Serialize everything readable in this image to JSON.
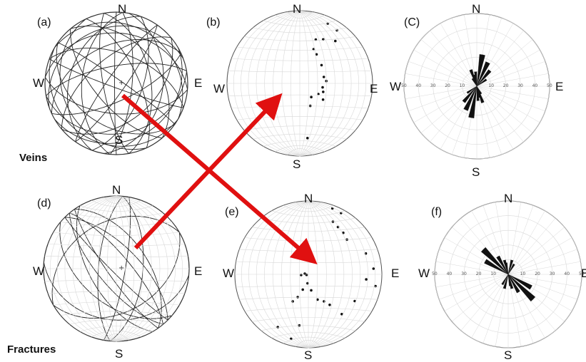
{
  "panels": [
    {
      "id": "a",
      "label": "(a)",
      "type": "great-circles",
      "N": "N",
      "S": "S",
      "E": "E",
      "W": "W"
    },
    {
      "id": "b",
      "label": "(b)",
      "type": "poles",
      "N": "N",
      "S": "S",
      "E": "E",
      "W": "W"
    },
    {
      "id": "c",
      "label": "(C)",
      "type": "rose",
      "N": "N",
      "S": "S",
      "E": "E",
      "W": "W",
      "ticks": [
        "50",
        "40",
        "30",
        "20",
        "10",
        "10",
        "20",
        "30",
        "40",
        "50"
      ]
    },
    {
      "id": "d",
      "label": "(d)",
      "type": "great-circles",
      "N": "N",
      "S": "S",
      "E": "E",
      "W": "W"
    },
    {
      "id": "e",
      "label": "(e)",
      "type": "poles",
      "N": "N",
      "S": "S",
      "E": "E",
      "W": "W"
    },
    {
      "id": "f",
      "label": "(f)",
      "type": "rose",
      "N": "N",
      "S": "S",
      "E": "E",
      "W": "W",
      "ticks": [
        "50",
        "40",
        "30",
        "20",
        "10",
        "10",
        "20",
        "30",
        "40",
        "50"
      ]
    }
  ],
  "row_labels": {
    "top": "Veins",
    "bottom": "Fractures"
  },
  "colors": {
    "arrow": "#e01010",
    "lines": "#222222",
    "grid": "#d8d8d8",
    "circle": "#555555"
  },
  "veins": {
    "great_circles": [
      {
        "strike": 10,
        "dip": 35
      },
      {
        "strike": 20,
        "dip": 60
      },
      {
        "strike": 35,
        "dip": 80
      },
      {
        "strike": 50,
        "dip": 45
      },
      {
        "strike": 65,
        "dip": 70
      },
      {
        "strike": 80,
        "dip": 30
      },
      {
        "strike": 95,
        "dip": 55
      },
      {
        "strike": 110,
        "dip": 85
      },
      {
        "strike": 125,
        "dip": 40
      },
      {
        "strike": 140,
        "dip": 65
      },
      {
        "strike": 155,
        "dip": 25
      },
      {
        "strike": 170,
        "dip": 75
      },
      {
        "strike": 185,
        "dip": 50
      },
      {
        "strike": 200,
        "dip": 35
      },
      {
        "strike": 215,
        "dip": 80
      },
      {
        "strike": 230,
        "dip": 60
      },
      {
        "strike": 245,
        "dip": 45
      },
      {
        "strike": 260,
        "dip": 70
      },
      {
        "strike": 275,
        "dip": 30
      },
      {
        "strike": 290,
        "dip": 55
      },
      {
        "strike": 305,
        "dip": 85
      },
      {
        "strike": 320,
        "dip": 40
      },
      {
        "strike": 335,
        "dip": 65
      },
      {
        "strike": 350,
        "dip": 50
      },
      {
        "strike": 5,
        "dip": 72
      },
      {
        "strike": 60,
        "dip": 20
      },
      {
        "strike": 120,
        "dip": 15
      },
      {
        "strike": 250,
        "dip": 22
      },
      {
        "strike": 300,
        "dip": 18
      },
      {
        "strike": 180,
        "dip": 88
      }
    ],
    "poles": [
      {
        "trend": 25,
        "plunge": 10
      },
      {
        "trend": 35,
        "plunge": 12
      },
      {
        "trend": 40,
        "plunge": 25
      },
      {
        "trend": 28,
        "plunge": 32
      },
      {
        "trend": 20,
        "plunge": 36
      },
      {
        "trend": 22,
        "plunge": 48
      },
      {
        "trend": 30,
        "plunge": 52
      },
      {
        "trend": 50,
        "plunge": 58
      },
      {
        "trend": 75,
        "plunge": 62
      },
      {
        "trend": 85,
        "plunge": 60
      },
      {
        "trend": 100,
        "plunge": 64
      },
      {
        "trend": 110,
        "plunge": 62
      },
      {
        "trend": 120,
        "plunge": 66
      },
      {
        "trend": 125,
        "plunge": 58
      },
      {
        "trend": 140,
        "plunge": 70
      },
      {
        "trend": 155,
        "plunge": 62
      },
      {
        "trend": 172,
        "plunge": 25
      }
    ],
    "rose": [
      {
        "azimuth": 10,
        "value": 22
      },
      {
        "azimuth": 25,
        "value": 18
      },
      {
        "azimuth": 40,
        "value": 14
      },
      {
        "azimuth": 55,
        "value": 8
      },
      {
        "azimuth": 150,
        "value": 6
      },
      {
        "azimuth": 165,
        "value": 8
      },
      {
        "azimuth": 340,
        "value": 12
      },
      {
        "azimuth": 355,
        "value": 10
      }
    ]
  },
  "fractures": {
    "great_circles": [
      {
        "strike": 140,
        "dip": 70
      },
      {
        "strike": 145,
        "dip": 80
      },
      {
        "strike": 150,
        "dip": 60
      },
      {
        "strike": 135,
        "dip": 85
      },
      {
        "strike": 130,
        "dip": 50
      },
      {
        "strike": 320,
        "dip": 75
      },
      {
        "strike": 315,
        "dip": 65
      },
      {
        "strike": 325,
        "dip": 55
      },
      {
        "strike": 10,
        "dip": 80
      },
      {
        "strike": 5,
        "dip": 60
      },
      {
        "strike": 185,
        "dip": 70
      },
      {
        "strike": 60,
        "dip": 40
      },
      {
        "strike": 240,
        "dip": 35
      },
      {
        "strike": 95,
        "dip": 30
      }
    ],
    "poles": [
      {
        "trend": 20,
        "plunge": 5
      },
      {
        "trend": 28,
        "plunge": 6
      },
      {
        "trend": 25,
        "plunge": 22
      },
      {
        "trend": 32,
        "plunge": 25
      },
      {
        "trend": 40,
        "plunge": 27
      },
      {
        "trend": 48,
        "plunge": 30
      },
      {
        "trend": 70,
        "plunge": 18
      },
      {
        "trend": 85,
        "plunge": 12
      },
      {
        "trend": 95,
        "plunge": 22
      },
      {
        "trend": 100,
        "plunge": 8
      },
      {
        "trend": 120,
        "plunge": 28
      },
      {
        "trend": 140,
        "plunge": 30
      },
      {
        "trend": 145,
        "plunge": 48
      },
      {
        "trend": 150,
        "plunge": 55
      },
      {
        "trend": 160,
        "plunge": 60
      },
      {
        "trend": 170,
        "plunge": 72
      },
      {
        "trend": 185,
        "plunge": 80
      },
      {
        "trend": 200,
        "plunge": 72
      },
      {
        "trend": 205,
        "plunge": 62
      },
      {
        "trend": 210,
        "plunge": 55
      },
      {
        "trend": 190,
        "plunge": 30
      },
      {
        "trend": 195,
        "plunge": 10
      },
      {
        "trend": 210,
        "plunge": 18
      },
      {
        "trend": 255,
        "plunge": 88
      },
      {
        "trend": 265,
        "plunge": 82
      },
      {
        "trend": 280,
        "plunge": 86
      }
    ],
    "rose": [
      {
        "azimuth": 15,
        "value": 10
      },
      {
        "azimuth": 30,
        "value": 8
      },
      {
        "azimuth": 120,
        "value": 18
      },
      {
        "azimuth": 135,
        "value": 24
      },
      {
        "azimuth": 150,
        "value": 14
      },
      {
        "azimuth": 165,
        "value": 10
      },
      {
        "azimuth": 330,
        "value": 6
      },
      {
        "azimuth": 350,
        "value": 8
      }
    ]
  }
}
